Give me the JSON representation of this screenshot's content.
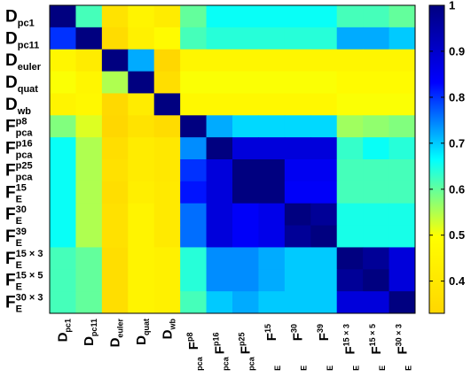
{
  "chart_data": {
    "type": "heatmap",
    "labels": [
      {
        "base": "D",
        "sub": "pc1",
        "sup": ""
      },
      {
        "base": "D",
        "sub": "pc11",
        "sup": ""
      },
      {
        "base": "D",
        "sub": "euler",
        "sup": ""
      },
      {
        "base": "D",
        "sub": "quat",
        "sup": ""
      },
      {
        "base": "D",
        "sub": "wb",
        "sup": ""
      },
      {
        "base": "F",
        "sub": "pca",
        "sup": "p8"
      },
      {
        "base": "F",
        "sub": "pca",
        "sup": "p16"
      },
      {
        "base": "F",
        "sub": "pca",
        "sup": "p25"
      },
      {
        "base": "F",
        "sub": "E",
        "sup": "15"
      },
      {
        "base": "F",
        "sub": "E",
        "sup": "30"
      },
      {
        "base": "F",
        "sub": "E",
        "sup": "39"
      },
      {
        "base": "F",
        "sub": "E",
        "sup": "15 × 3"
      },
      {
        "base": "F",
        "sub": "E",
        "sup": "15 × 5"
      },
      {
        "base": "F",
        "sub": "E",
        "sup": "30 × 3"
      }
    ],
    "matrix": [
      [
        1.0,
        0.62,
        0.38,
        0.45,
        0.42,
        0.6,
        0.66,
        0.66,
        0.66,
        0.66,
        0.66,
        0.62,
        0.62,
        0.6
      ],
      [
        0.8,
        1.0,
        0.35,
        0.44,
        0.48,
        0.62,
        0.64,
        0.64,
        0.64,
        0.64,
        0.64,
        0.72,
        0.72,
        0.7
      ],
      [
        0.46,
        0.42,
        1.0,
        0.72,
        0.33,
        0.46,
        0.46,
        0.46,
        0.46,
        0.46,
        0.46,
        0.46,
        0.46,
        0.46
      ],
      [
        0.5,
        0.46,
        0.55,
        1.0,
        0.36,
        0.5,
        0.5,
        0.5,
        0.5,
        0.5,
        0.5,
        0.48,
        0.48,
        0.48
      ],
      [
        0.45,
        0.47,
        0.34,
        0.42,
        1.0,
        0.47,
        0.47,
        0.47,
        0.47,
        0.47,
        0.47,
        0.5,
        0.5,
        0.5
      ],
      [
        0.58,
        0.52,
        0.33,
        0.38,
        0.35,
        1.0,
        0.72,
        0.69,
        0.69,
        0.69,
        0.69,
        0.56,
        0.57,
        0.58
      ],
      [
        0.66,
        0.55,
        0.36,
        0.42,
        0.4,
        0.74,
        1.0,
        0.88,
        0.88,
        0.88,
        0.88,
        0.63,
        0.66,
        0.64
      ],
      [
        0.66,
        0.55,
        0.37,
        0.42,
        0.4,
        0.8,
        0.88,
        1.0,
        1.0,
        0.85,
        0.85,
        0.62,
        0.62,
        0.62
      ],
      [
        0.66,
        0.55,
        0.36,
        0.43,
        0.41,
        0.82,
        0.88,
        1.0,
        1.0,
        0.84,
        0.84,
        0.62,
        0.62,
        0.62
      ],
      [
        0.66,
        0.55,
        0.37,
        0.45,
        0.41,
        0.76,
        0.88,
        0.84,
        0.86,
        1.0,
        0.97,
        0.65,
        0.65,
        0.65
      ],
      [
        0.66,
        0.55,
        0.37,
        0.45,
        0.41,
        0.76,
        0.88,
        0.84,
        0.86,
        0.97,
        1.0,
        0.65,
        0.65,
        0.65
      ],
      [
        0.62,
        0.6,
        0.36,
        0.45,
        0.44,
        0.64,
        0.74,
        0.74,
        0.72,
        0.7,
        0.7,
        1.0,
        0.97,
        0.88
      ],
      [
        0.62,
        0.6,
        0.36,
        0.45,
        0.44,
        0.64,
        0.74,
        0.74,
        0.72,
        0.7,
        0.7,
        0.97,
        1.0,
        0.88
      ],
      [
        0.62,
        0.6,
        0.36,
        0.45,
        0.44,
        0.62,
        0.7,
        0.72,
        0.7,
        0.7,
        0.7,
        0.88,
        0.88,
        1.0
      ]
    ],
    "colorbar": {
      "range": [
        0.33,
        1.0
      ],
      "ticks": [
        "0.4",
        "0.5",
        "0.6",
        "0.7",
        "0.8",
        "0.9",
        "1"
      ],
      "colormap": [
        "#ffd700",
        "#ffff00",
        "#00ffff",
        "#0000ff",
        "#000080"
      ]
    }
  }
}
